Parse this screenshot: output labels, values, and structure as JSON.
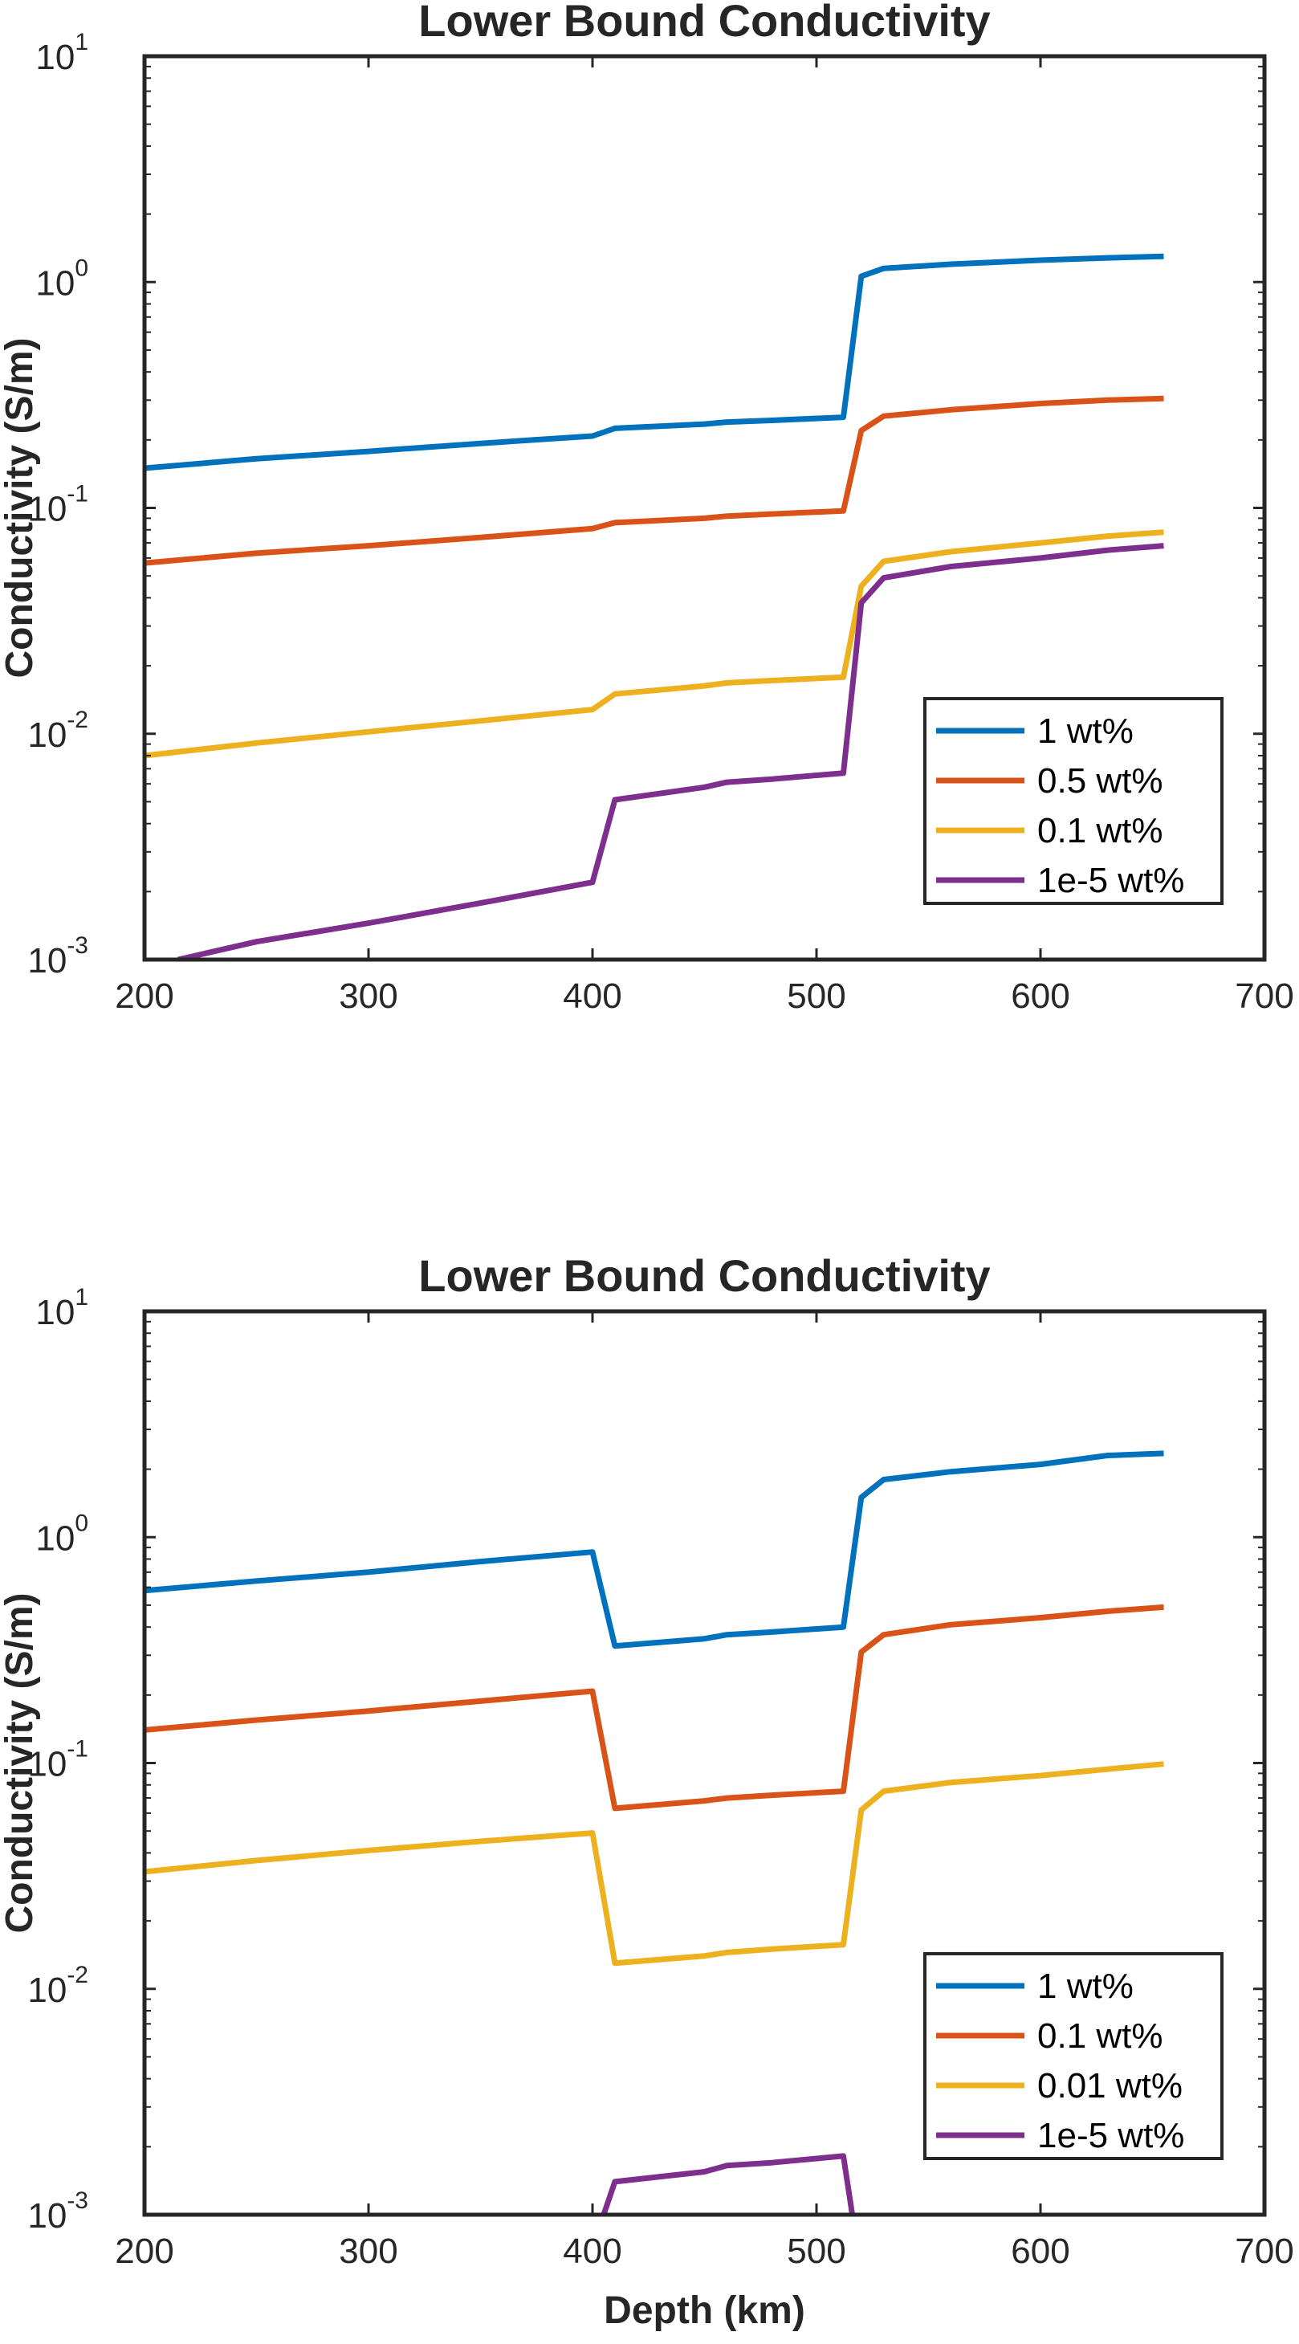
{
  "chart_data": [
    {
      "type": "line",
      "title": "Lower Bound Conductivity",
      "xlabel": "",
      "ylabel": "Conductivity (S/m)",
      "xlim": [
        200,
        700
      ],
      "ylim": [
        0.001,
        10
      ],
      "yscale": "log",
      "x_ticks": [
        "200",
        "300",
        "400",
        "500",
        "600",
        "700"
      ],
      "y_ticks": [
        {
          "base": "10",
          "exp": "-3"
        },
        {
          "base": "10",
          "exp": "-2"
        },
        {
          "base": "10",
          "exp": "-1"
        },
        {
          "base": "10",
          "exp": "0"
        },
        {
          "base": "10",
          "exp": "1"
        }
      ],
      "grid": false,
      "legend_position": "lower-right",
      "series": [
        {
          "name": "1 wt%",
          "color": "#0072BD",
          "x": [
            200,
            250,
            300,
            350,
            400,
            410,
            450,
            460,
            480,
            512,
            520,
            530,
            560,
            600,
            630,
            655
          ],
          "y": [
            0.15,
            0.165,
            0.178,
            0.193,
            0.208,
            0.225,
            0.235,
            0.24,
            0.244,
            0.252,
            1.06,
            1.15,
            1.2,
            1.25,
            1.28,
            1.3
          ]
        },
        {
          "name": "0.5 wt%",
          "color": "#D95319",
          "x": [
            200,
            250,
            300,
            350,
            400,
            410,
            450,
            460,
            480,
            512,
            520,
            530,
            560,
            600,
            630,
            655
          ],
          "y": [
            0.057,
            0.063,
            0.068,
            0.074,
            0.081,
            0.086,
            0.09,
            0.092,
            0.094,
            0.097,
            0.22,
            0.255,
            0.272,
            0.29,
            0.3,
            0.305
          ]
        },
        {
          "name": "0.1 wt%",
          "color": "#EDB120",
          "x": [
            200,
            250,
            300,
            350,
            400,
            410,
            450,
            460,
            480,
            512,
            520,
            530,
            560,
            600,
            630,
            655
          ],
          "y": [
            0.008,
            0.0091,
            0.0102,
            0.0114,
            0.0128,
            0.015,
            0.0163,
            0.0168,
            0.0172,
            0.0178,
            0.045,
            0.058,
            0.064,
            0.07,
            0.075,
            0.078
          ]
        },
        {
          "name": "1e-5 wt%",
          "color": "#7E2F8E",
          "x": [
            215,
            250,
            300,
            350,
            400,
            410,
            450,
            460,
            480,
            512,
            520,
            530,
            560,
            600,
            630,
            655
          ],
          "y": [
            0.001,
            0.0012,
            0.00145,
            0.00178,
            0.0022,
            0.0051,
            0.0058,
            0.0061,
            0.0063,
            0.0067,
            0.038,
            0.049,
            0.055,
            0.06,
            0.065,
            0.068
          ]
        }
      ]
    },
    {
      "type": "line",
      "title": "Lower Bound Conductivity",
      "xlabel": "Depth (km)",
      "ylabel": "Conductivity (S/m)",
      "xlim": [
        200,
        700
      ],
      "ylim": [
        0.001,
        10
      ],
      "yscale": "log",
      "x_ticks": [
        "200",
        "300",
        "400",
        "500",
        "600",
        "700"
      ],
      "y_ticks": [
        {
          "base": "10",
          "exp": "-3"
        },
        {
          "base": "10",
          "exp": "-2"
        },
        {
          "base": "10",
          "exp": "-1"
        },
        {
          "base": "10",
          "exp": "0"
        },
        {
          "base": "10",
          "exp": "1"
        }
      ],
      "grid": false,
      "legend_position": "lower-right",
      "series": [
        {
          "name": "1 wt%",
          "color": "#0072BD",
          "x": [
            200,
            250,
            300,
            350,
            400,
            410,
            450,
            460,
            480,
            512,
            520,
            530,
            560,
            600,
            630,
            655
          ],
          "y": [
            0.58,
            0.64,
            0.7,
            0.78,
            0.86,
            0.33,
            0.355,
            0.37,
            0.38,
            0.4,
            1.5,
            1.8,
            1.95,
            2.1,
            2.3,
            2.35
          ]
        },
        {
          "name": "0.1 wt%",
          "color": "#D95319",
          "x": [
            200,
            250,
            300,
            350,
            400,
            410,
            450,
            460,
            480,
            512,
            520,
            530,
            560,
            600,
            630,
            655
          ],
          "y": [
            0.14,
            0.155,
            0.17,
            0.188,
            0.208,
            0.063,
            0.068,
            0.07,
            0.072,
            0.075,
            0.31,
            0.37,
            0.41,
            0.44,
            0.47,
            0.49
          ]
        },
        {
          "name": "0.01 wt%",
          "color": "#EDB120",
          "x": [
            200,
            250,
            300,
            350,
            400,
            410,
            450,
            460,
            480,
            512,
            520,
            530,
            560,
            600,
            630,
            655
          ],
          "y": [
            0.033,
            0.037,
            0.041,
            0.045,
            0.049,
            0.013,
            0.014,
            0.0145,
            0.015,
            0.0157,
            0.062,
            0.075,
            0.082,
            0.088,
            0.094,
            0.099
          ]
        },
        {
          "name": "1e-5 wt%",
          "color": "#7E2F8E",
          "x": [
            405,
            410,
            450,
            460,
            480,
            512,
            516
          ],
          "y": [
            0.001,
            0.0014,
            0.00155,
            0.00165,
            0.0017,
            0.00182,
            0.001
          ]
        }
      ]
    }
  ]
}
